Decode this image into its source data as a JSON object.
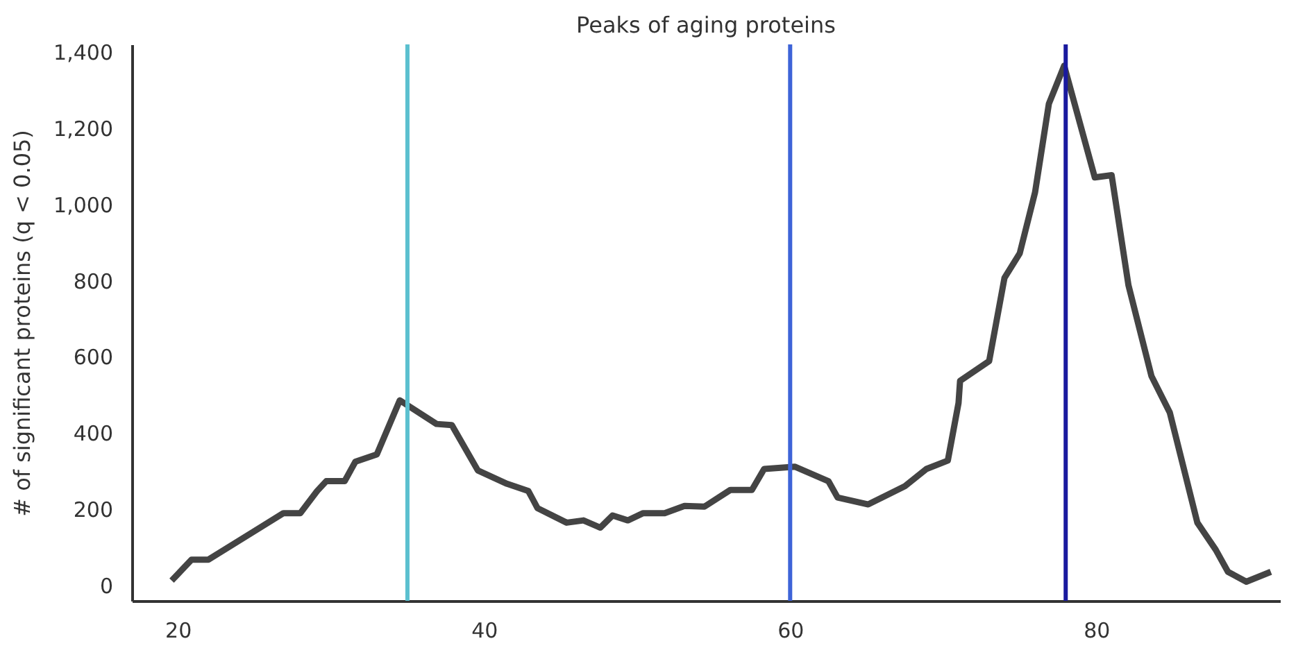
{
  "chart_data": {
    "type": "line",
    "title": "Peaks of aging proteins",
    "ylabel": "# of significant proteins (q < 0.05)",
    "x": [
      19.6,
      20.9,
      22.0,
      26.9,
      28.0,
      29.1,
      29.7,
      30.9,
      31.6,
      33.0,
      34.5,
      36.9,
      37.9,
      39.6,
      41.5,
      42.9,
      43.5,
      45.4,
      46.5,
      47.6,
      48.4,
      49.4,
      50.4,
      51.8,
      53.1,
      54.4,
      56.1,
      57.5,
      58.3,
      60.3,
      62.5,
      63.1,
      65.1,
      67.5,
      68.9,
      70.3,
      71.0,
      71.1,
      73.0,
      74.0,
      75.0,
      76.0,
      76.9,
      77.9,
      79.9,
      81.0,
      82.1,
      83.6,
      84.8,
      86.6,
      87.8,
      88.6,
      89.8,
      91.4
    ],
    "series": [
      {
        "color": "#444444",
        "values": [
          13,
          68,
          68,
          190,
          190,
          248,
          274,
          274,
          325,
          344,
          486,
          424,
          421,
          302,
          267,
          248,
          203,
          165,
          171,
          152,
          184,
          171,
          190,
          190,
          209,
          207,
          251,
          251,
          306,
          312,
          274,
          231,
          213,
          261,
          306,
          328,
          479,
          537,
          589,
          807,
          872,
          1032,
          1264,
          1364,
          1071,
          1077,
          788,
          550,
          454,
          165,
          94,
          36,
          10,
          36
        ]
      }
    ],
    "xlim": [
      17,
      92
    ],
    "xticks": [
      20,
      40,
      60,
      80
    ],
    "ylim": [
      -40,
      1420
    ],
    "yticks": [
      0,
      200,
      400,
      600,
      800,
      {
        "value": 1000,
        "label": "1,000"
      },
      {
        "value": 1200,
        "label": "1,200"
      },
      {
        "value": 1400,
        "label": "1,400"
      }
    ],
    "ref_lines": [
      {
        "axis": "x",
        "value": 35,
        "color": "#5bc0cf"
      },
      {
        "axis": "x",
        "value": 60,
        "color": "#3e64d8"
      },
      {
        "axis": "x",
        "value": 78,
        "color": "#1a1a9e"
      }
    ],
    "grid": false,
    "legend": false,
    "marker": "none",
    "line_style": "solid"
  }
}
